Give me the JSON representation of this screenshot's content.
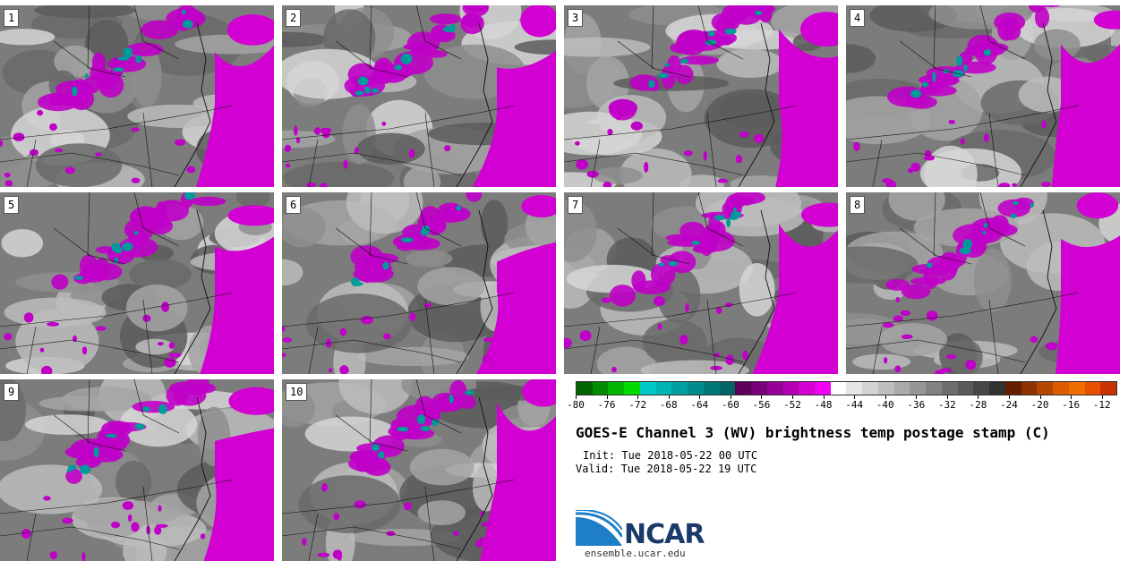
{
  "panels": [
    "1",
    "2",
    "3",
    "4",
    "5",
    "6",
    "7",
    "8",
    "9",
    "10"
  ],
  "colorbar": {
    "colors": [
      "#006400",
      "#008c00",
      "#00b400",
      "#00dc00",
      "#00c8c8",
      "#00b4b4",
      "#00a0a0",
      "#008c8c",
      "#007878",
      "#006464",
      "#5a005a",
      "#780078",
      "#960096",
      "#b400b4",
      "#d200d2",
      "#f000f0",
      "#ffffff",
      "#e6e6e6",
      "#d2d2d2",
      "#bebebe",
      "#aaaaaa",
      "#969696",
      "#828282",
      "#6e6e6e",
      "#5a5a5a",
      "#464646",
      "#323232",
      "#641e00",
      "#8c3200",
      "#b44600",
      "#dc5a00",
      "#f06e00",
      "#e65000",
      "#c83200"
    ],
    "ticks": [
      "-80",
      "-76",
      "-72",
      "-68",
      "-64",
      "-60",
      "-56",
      "-52",
      "-48",
      "-44",
      "-40",
      "-36",
      "-32",
      "-28",
      "-24",
      "-20",
      "-16",
      "-12"
    ],
    "tick_values": [
      -80,
      -76,
      -72,
      -68,
      -64,
      -60,
      -56,
      -52,
      -48,
      -44,
      -40,
      -36,
      -32,
      -28,
      -24,
      -20,
      -16,
      -12
    ],
    "min": -80,
    "max": -10
  },
  "title": "GOES-E Channel 3 (WV) brightness temp postage stamp (C)",
  "init": "Init: Tue 2018-05-22 00 UTC",
  "valid": "Valid: Tue 2018-05-22 19 UTC",
  "logo": {
    "text": "NCAR",
    "url": "ensemble.ucar.edu",
    "colors": {
      "swoosh": "#1e7fc8",
      "text": "#1a3a6b"
    }
  },
  "field_colors": {
    "moist": "#d200d2",
    "cold": "#009a9a",
    "background": "#7c7c7c"
  }
}
